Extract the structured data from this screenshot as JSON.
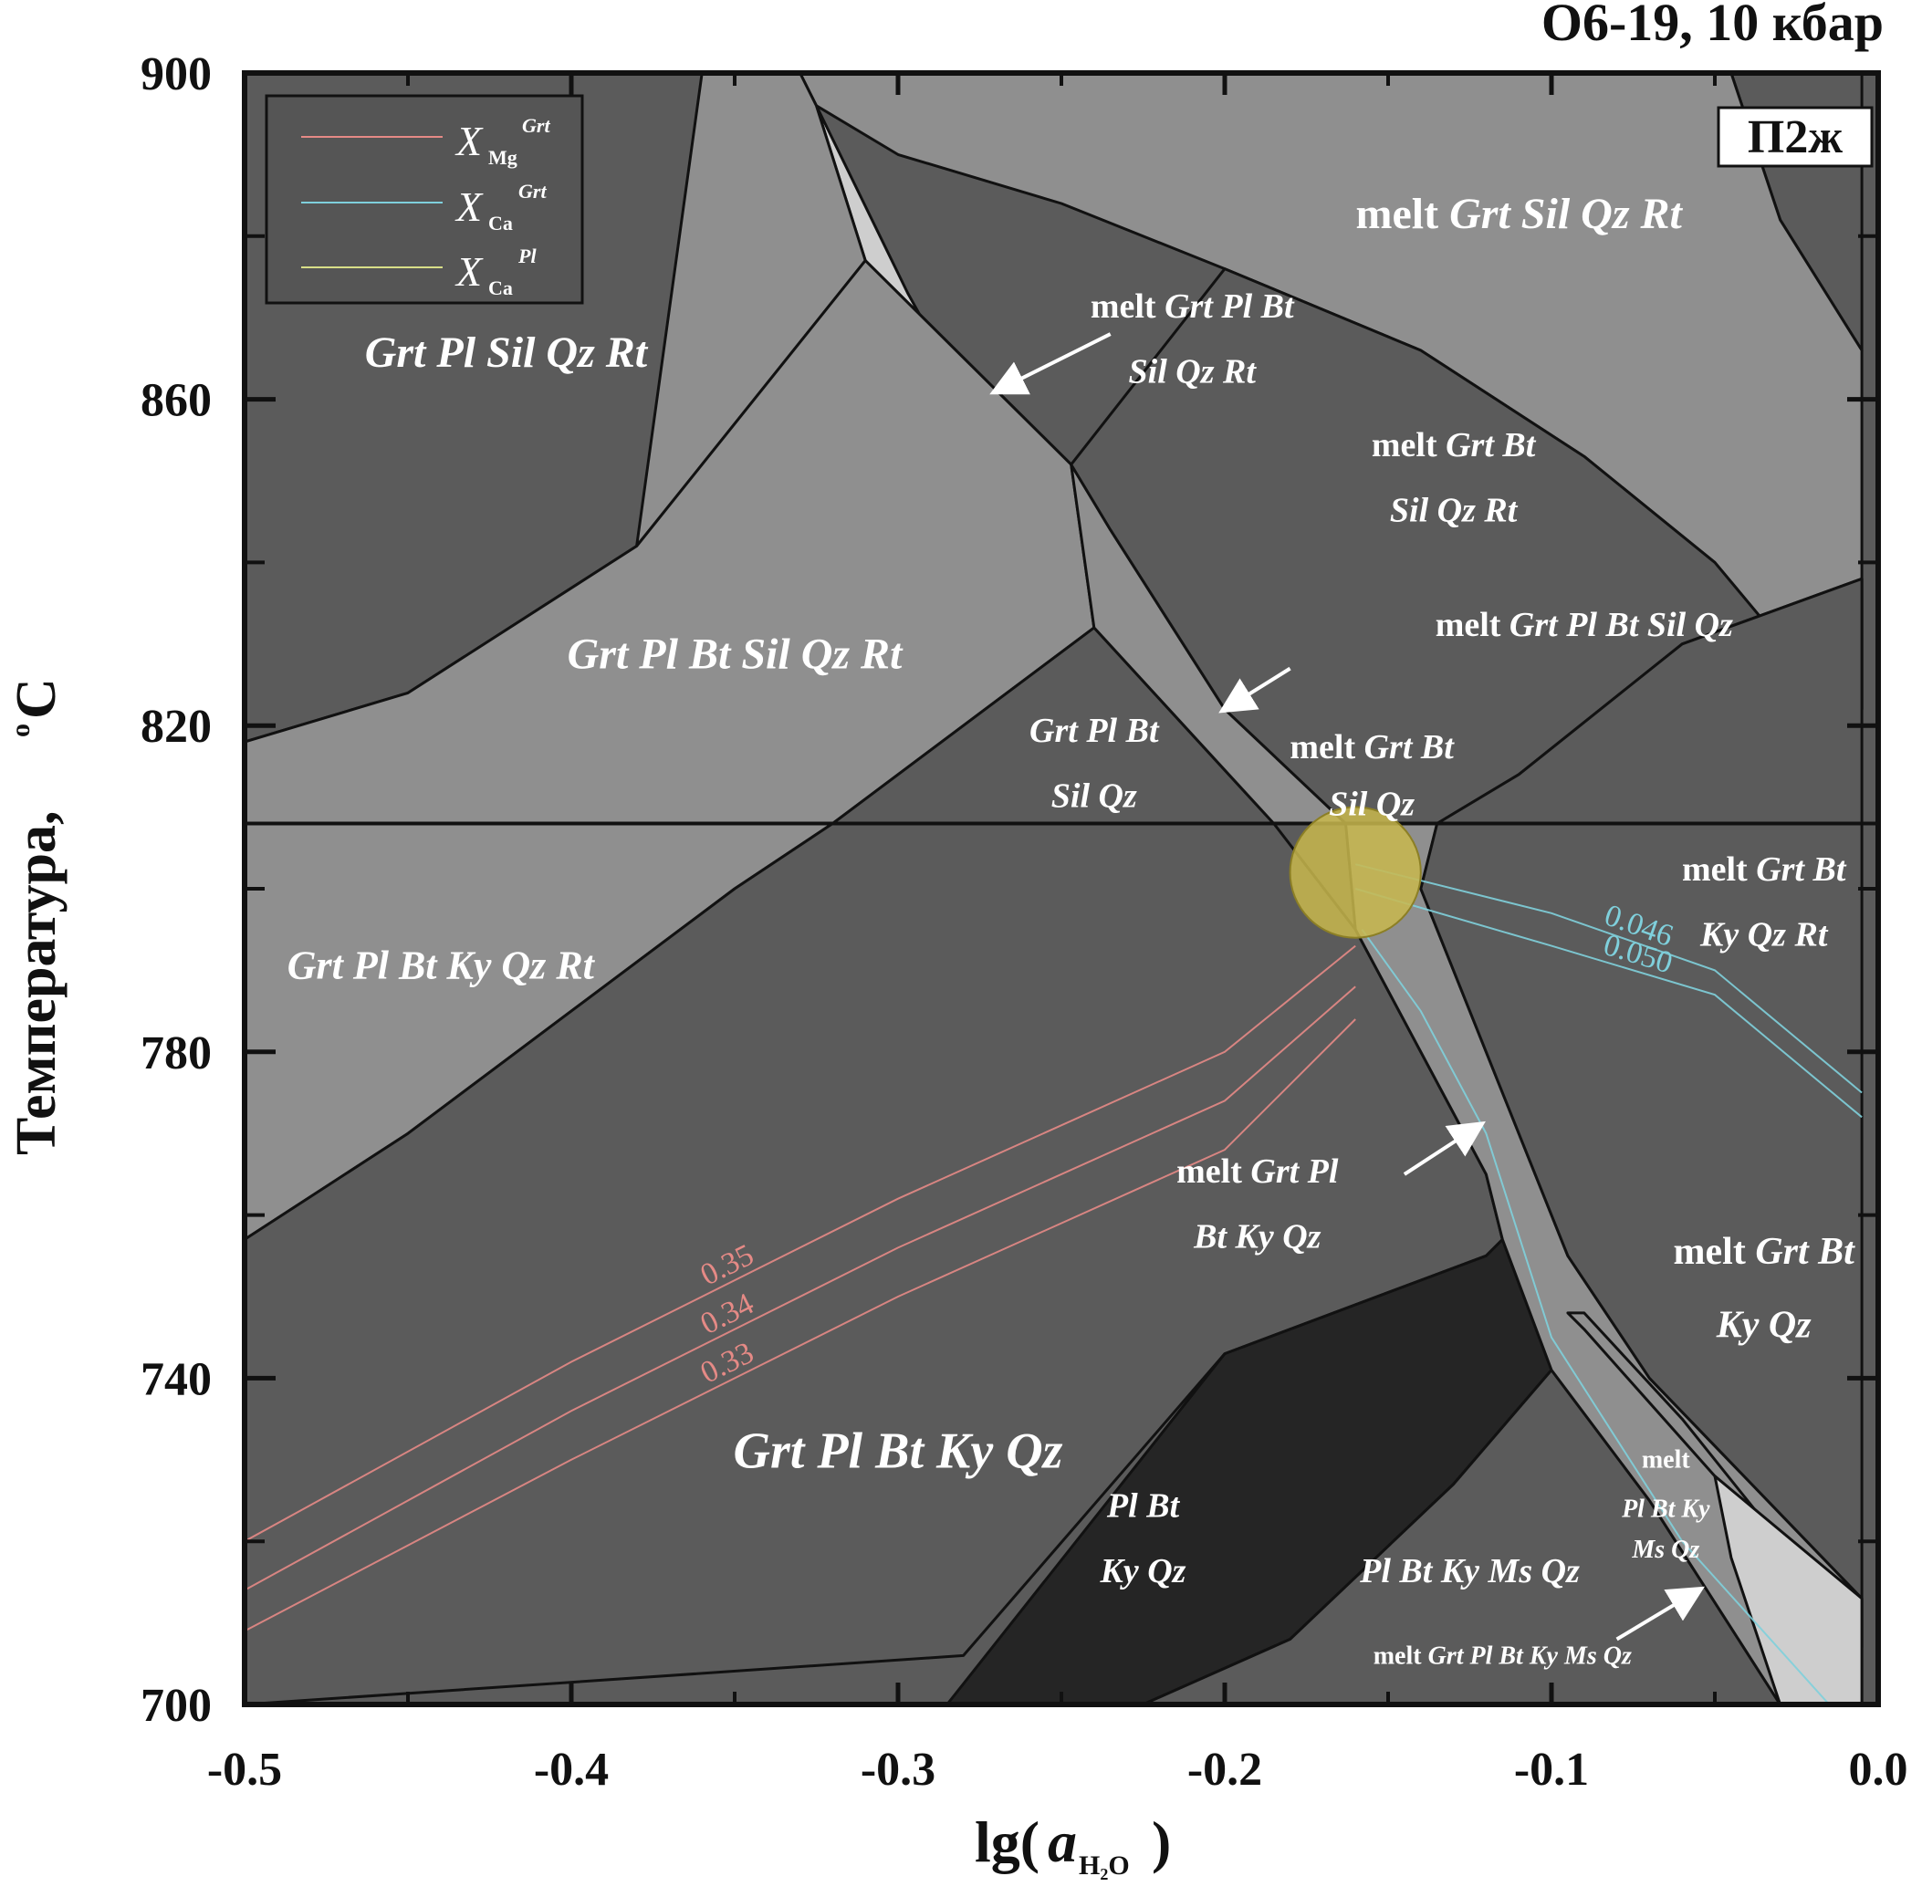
{
  "chart_data": {
    "type": "area",
    "title": "O6-19, 10 кбар",
    "panel_label": "П2ж",
    "xlabel": {
      "main": "lg(",
      "var": "a",
      "sub": "H₂O",
      "close": ")"
    },
    "ylabel": "Температура, ",
    "ylabel_unit": "C",
    "ylabel_unit_sup": "o",
    "xlim": [
      -0.5,
      0.0
    ],
    "ylim": [
      700,
      900
    ],
    "x_ticks": [
      -0.5,
      -0.4,
      -0.3,
      -0.2,
      -0.1,
      0.0
    ],
    "x_tick_labels": [
      "-0.5",
      "-0.4",
      "-0.3",
      "-0.2",
      "-0.1",
      "0.0"
    ],
    "y_ticks": [
      700,
      740,
      780,
      820,
      860,
      900
    ],
    "y_tick_labels": [
      "700",
      "740",
      "780",
      "820",
      "860",
      "900"
    ],
    "hline_T": 808,
    "legend": {
      "position": "top-left",
      "entries": [
        {
          "symbol": "X",
          "sub": "Mg",
          "sup": "Grt",
          "color": "#e58a86"
        },
        {
          "symbol": "X",
          "sub": "Ca",
          "sup": "Grt",
          "color": "#7fd0dc"
        },
        {
          "symbol": "X",
          "sub": "Ca",
          "sup": "Pl",
          "color": "#d8de88"
        }
      ]
    },
    "fields": [
      {
        "label": "Grt Pl Sil Qz Rt",
        "color": "#5b5b5b",
        "points": [
          [
            -0.5,
            900
          ],
          [
            -0.36,
            900
          ],
          [
            -0.31,
            877
          ],
          [
            -0.38,
            842
          ],
          [
            -0.45,
            824
          ],
          [
            -0.5,
            818
          ]
        ]
      },
      {
        "label": "melt Grt Sil Qz Rt",
        "color": "#5b5b5b",
        "points": [
          [
            -0.36,
            900
          ],
          [
            -0.005,
            900
          ],
          [
            -0.005,
            866
          ],
          [
            -0.03,
            882
          ],
          [
            -0.045,
            900
          ]
        ]
      },
      {
        "label": "melt Grt Sil Qz Rt",
        "color": "#8f8f8f",
        "points": [
          [
            -0.325,
            896
          ],
          [
            -0.3,
            890
          ],
          [
            -0.25,
            884
          ],
          [
            -0.2,
            876
          ],
          [
            -0.14,
            866
          ],
          [
            -0.09,
            853
          ],
          [
            -0.05,
            840
          ],
          [
            -0.025,
            828
          ],
          [
            -0.005,
            822
          ],
          [
            -0.005,
            866
          ],
          [
            -0.03,
            882
          ],
          [
            -0.045,
            900
          ],
          [
            -0.33,
            900
          ]
        ]
      },
      {
        "label": "melt Grt Pl Bt Sil Qz Rt",
        "color": "#cecece",
        "points": [
          [
            -0.325,
            896
          ],
          [
            -0.297,
            873
          ],
          [
            -0.24,
            832
          ],
          [
            -0.247,
            852
          ],
          [
            -0.31,
            877
          ]
        ]
      },
      {
        "label": "melt Grt Bt Sil Qz Rt",
        "color": "#8f8f8f",
        "points": [
          [
            -0.36,
            900
          ],
          [
            -0.33,
            900
          ],
          [
            -0.325,
            896
          ],
          [
            -0.31,
            877
          ],
          [
            -0.38,
            842
          ]
        ]
      },
      {
        "label": "Grt Pl Bt Sil Qz Rt",
        "color": "#8f8f8f",
        "points": [
          [
            -0.5,
            818
          ],
          [
            -0.45,
            824
          ],
          [
            -0.38,
            842
          ],
          [
            -0.31,
            877
          ],
          [
            -0.247,
            852
          ],
          [
            -0.24,
            832
          ],
          [
            -0.32,
            808
          ],
          [
            -0.5,
            808
          ]
        ]
      },
      {
        "label": "Grt Pl Bt Sil Qz",
        "color": "#5b5b5b",
        "points": [
          [
            -0.24,
            832
          ],
          [
            -0.32,
            808
          ],
          [
            -0.185,
            808
          ]
        ]
      },
      {
        "label": "melt Grt Pl Bt Sil Qz",
        "color": "#8f8f8f",
        "points": [
          [
            -0.247,
            852
          ],
          [
            -0.24,
            832
          ],
          [
            -0.185,
            808
          ],
          [
            -0.163,
            808
          ],
          [
            -0.2,
            822
          ],
          [
            -0.235,
            844
          ]
        ]
      },
      {
        "label": "melt Grt Bt Sil Qz",
        "color": "#5b5b5b",
        "points": [
          [
            -0.235,
            844
          ],
          [
            -0.2,
            822
          ],
          [
            -0.163,
            808
          ],
          [
            -0.135,
            808
          ],
          [
            -0.11,
            814
          ],
          [
            -0.06,
            830
          ],
          [
            -0.005,
            838
          ],
          [
            -0.005,
            822
          ],
          [
            -0.025,
            828
          ],
          [
            -0.05,
            840
          ],
          [
            -0.09,
            853
          ],
          [
            -0.14,
            866
          ],
          [
            -0.2,
            876
          ],
          [
            -0.247,
            852
          ]
        ]
      },
      {
        "label": "Grt Pl Bt Ky Qz Rt",
        "color": "#8f8f8f",
        "points": [
          [
            -0.5,
            808
          ],
          [
            -0.32,
            808
          ],
          [
            -0.35,
            800
          ],
          [
            -0.4,
            785
          ],
          [
            -0.45,
            770
          ],
          [
            -0.5,
            757
          ]
        ]
      },
      {
        "label": "Grt Pl Bt Ky Qz",
        "color": "#5b5b5b",
        "points": [
          [
            -0.5,
            757
          ],
          [
            -0.45,
            770
          ],
          [
            -0.4,
            785
          ],
          [
            -0.35,
            800
          ],
          [
            -0.32,
            808
          ],
          [
            -0.185,
            808
          ],
          [
            -0.16,
            795
          ],
          [
            -0.12,
            765
          ],
          [
            -0.115,
            757
          ],
          [
            -0.12,
            755
          ],
          [
            -0.2,
            743
          ],
          [
            -0.28,
            706
          ],
          [
            -0.5,
            700
          ]
        ]
      },
      {
        "label": "Pl Bt Ky Qz",
        "color": "#252525",
        "points": [
          [
            -0.115,
            757
          ],
          [
            -0.1,
            741
          ],
          [
            -0.13,
            727
          ],
          [
            -0.18,
            708
          ],
          [
            -0.225,
            700
          ],
          [
            -0.285,
            700
          ],
          [
            -0.2,
            743
          ],
          [
            -0.12,
            755
          ]
        ]
      },
      {
        "label": "Pl Bt Ky Ms Qz",
        "color": "#5b5b5b",
        "points": [
          [
            -0.1,
            741
          ],
          [
            -0.07,
            725
          ],
          [
            -0.03,
            700
          ],
          [
            -0.225,
            700
          ],
          [
            -0.18,
            708
          ],
          [
            -0.13,
            727
          ]
        ]
      },
      {
        "label": "melt Grt Pl Bt Ky Qz",
        "color": "#8f8f8f",
        "points": [
          [
            -0.163,
            808
          ],
          [
            -0.135,
            808
          ],
          [
            -0.14,
            800
          ],
          [
            -0.12,
            780
          ],
          [
            -0.095,
            755
          ],
          [
            -0.07,
            740
          ],
          [
            -0.005,
            713
          ],
          [
            -0.005,
            700
          ],
          [
            -0.03,
            700
          ],
          [
            -0.07,
            725
          ],
          [
            -0.1,
            741
          ],
          [
            -0.115,
            757
          ],
          [
            -0.12,
            765
          ],
          [
            -0.16,
            795
          ]
        ]
      },
      {
        "label": "melt Grt Bt Ky Qz Rt",
        "color": "#5b5b5b",
        "points": [
          [
            -0.135,
            808
          ],
          [
            -0.005,
            808
          ],
          [
            -0.005,
            838
          ],
          [
            -0.06,
            830
          ],
          [
            -0.11,
            814
          ]
        ]
      },
      {
        "label": "melt Grt Bt Ky Qz",
        "color": "#5b5b5b",
        "points": [
          [
            -0.135,
            808
          ],
          [
            -0.005,
            808
          ],
          [
            -0.005,
            713
          ],
          [
            -0.07,
            740
          ],
          [
            -0.095,
            755
          ],
          [
            -0.12,
            780
          ],
          [
            -0.14,
            800
          ]
        ]
      },
      {
        "label": "melt Pl Bt Ky Ms Qz",
        "color": "#8f8f8f",
        "points": [
          [
            -0.095,
            748
          ],
          [
            -0.09,
            746
          ],
          [
            -0.05,
            728
          ],
          [
            -0.02,
            715
          ],
          [
            -0.005,
            713
          ],
          [
            -0.005,
            707
          ],
          [
            -0.03,
            720
          ],
          [
            -0.06,
            735
          ],
          [
            -0.09,
            748
          ]
        ]
      },
      {
        "label": "melt Grt Pl Bt Ky Ms Qz",
        "color": "#cecece",
        "points": [
          [
            -0.05,
            728
          ],
          [
            -0.005,
            713
          ],
          [
            -0.005,
            700
          ],
          [
            -0.03,
            700
          ],
          [
            -0.045,
            718
          ]
        ]
      }
    ],
    "isopleths": [
      {
        "name": "0.35",
        "color": "#e58a86",
        "points": [
          [
            -0.5,
            720
          ],
          [
            -0.4,
            742
          ],
          [
            -0.3,
            762
          ],
          [
            -0.2,
            780
          ],
          [
            -0.16,
            793
          ]
        ]
      },
      {
        "name": "0.34",
        "color": "#e58a86",
        "points": [
          [
            -0.5,
            714
          ],
          [
            -0.4,
            736
          ],
          [
            -0.3,
            756
          ],
          [
            -0.2,
            774
          ],
          [
            -0.16,
            788
          ]
        ]
      },
      {
        "name": "0.33",
        "color": "#e58a86",
        "points": [
          [
            -0.5,
            709
          ],
          [
            -0.4,
            730
          ],
          [
            -0.3,
            750
          ],
          [
            -0.2,
            768
          ],
          [
            -0.16,
            784
          ]
        ]
      },
      {
        "name": "0.050",
        "color": "#7fd0dc",
        "points": [
          [
            -0.16,
            800
          ],
          [
            -0.1,
            793
          ],
          [
            -0.05,
            787
          ],
          [
            -0.005,
            772
          ]
        ]
      },
      {
        "name": "0.046",
        "color": "#7fd0dc",
        "points": [
          [
            -0.16,
            803
          ],
          [
            -0.1,
            797
          ],
          [
            -0.05,
            790
          ],
          [
            -0.005,
            775
          ]
        ]
      },
      {
        "name": "",
        "color": "#7fd0dc",
        "points": [
          [
            -0.158,
            795
          ],
          [
            -0.14,
            785
          ],
          [
            -0.12,
            770
          ],
          [
            -0.1,
            745
          ],
          [
            -0.06,
            720
          ],
          [
            -0.015,
            700
          ]
        ]
      }
    ],
    "highlight": {
      "x": -0.16,
      "T": 802,
      "radius_data_x": 0.02
    },
    "field_labels": [
      {
        "text": "melt Grt Sil Qz Rt",
        "x": -0.11,
        "T": 881,
        "size": 48
      },
      {
        "text": "Grt Pl Sil Qz Rt",
        "x": -0.42,
        "T": 864,
        "size": 48
      },
      {
        "text": "melt Grt Pl Bt",
        "x": -0.21,
        "T": 870,
        "size": 38
      },
      {
        "text": "Sil Qz Rt",
        "x": -0.21,
        "T": 862,
        "size": 38
      },
      {
        "text": "melt Grt Bt",
        "x": -0.13,
        "T": 853,
        "size": 38
      },
      {
        "text": "Sil Qz Rt",
        "x": -0.13,
        "T": 845,
        "size": 38
      },
      {
        "text": "Grt Pl Bt Sil Qz Rt",
        "x": -0.35,
        "T": 827,
        "size": 48
      },
      {
        "text": "melt Grt Pl Bt Sil Qz",
        "x": -0.09,
        "T": 831,
        "size": 38
      },
      {
        "text": "Grt Pl Bt",
        "x": -0.24,
        "T": 818,
        "size": 38
      },
      {
        "text": "Sil Qz",
        "x": -0.24,
        "T": 810,
        "size": 38
      },
      {
        "text": "melt Grt Bt",
        "x": -0.155,
        "T": 816,
        "size": 38
      },
      {
        "text": "Sil Qz",
        "x": -0.155,
        "T": 809,
        "size": 38
      },
      {
        "text": "melt Grt Bt",
        "x": -0.035,
        "T": 801,
        "size": 38
      },
      {
        "text": "Ky Qz Rt",
        "x": -0.035,
        "T": 793,
        "size": 38
      },
      {
        "text": "Grt Pl Bt Ky Qz Rt",
        "x": -0.44,
        "T": 789,
        "size": 44
      },
      {
        "text": "melt Grt Pl",
        "x": -0.19,
        "T": 764,
        "size": 38
      },
      {
        "text": "Bt Ky Qz",
        "x": -0.19,
        "T": 756,
        "size": 38
      },
      {
        "text": "melt Grt Bt",
        "x": -0.035,
        "T": 754,
        "size": 42
      },
      {
        "text": "Ky Qz",
        "x": -0.035,
        "T": 745,
        "size": 42
      },
      {
        "text": "Grt Pl Bt Ky Qz",
        "x": -0.3,
        "T": 729,
        "size": 56
      },
      {
        "text": "Pl Bt",
        "x": -0.225,
        "T": 723,
        "size": 38
      },
      {
        "text": "Ky Qz",
        "x": -0.225,
        "T": 715,
        "size": 38
      },
      {
        "text": "Pl Bt Ky Ms Qz",
        "x": -0.125,
        "T": 715,
        "size": 38
      },
      {
        "text": "melt",
        "x": -0.065,
        "T": 729,
        "size": 28
      },
      {
        "text": "Pl Bt Ky",
        "x": -0.065,
        "T": 723,
        "size": 28
      },
      {
        "text": "Ms Qz",
        "x": -0.065,
        "T": 718,
        "size": 28
      },
      {
        "text": "melt Grt Pl Bt Ky Ms Qz",
        "x": -0.115,
        "T": 705,
        "size": 28
      }
    ],
    "arrows": [
      {
        "from": [
          -0.235,
          868
        ],
        "to": [
          -0.27,
          861
        ]
      },
      {
        "from": [
          -0.18,
          827
        ],
        "to": [
          -0.2,
          822
        ]
      },
      {
        "from": [
          -0.145,
          765
        ],
        "to": [
          -0.122,
          771
        ]
      },
      {
        "from": [
          -0.08,
          708
        ],
        "to": [
          -0.055,
          714
        ]
      }
    ]
  }
}
